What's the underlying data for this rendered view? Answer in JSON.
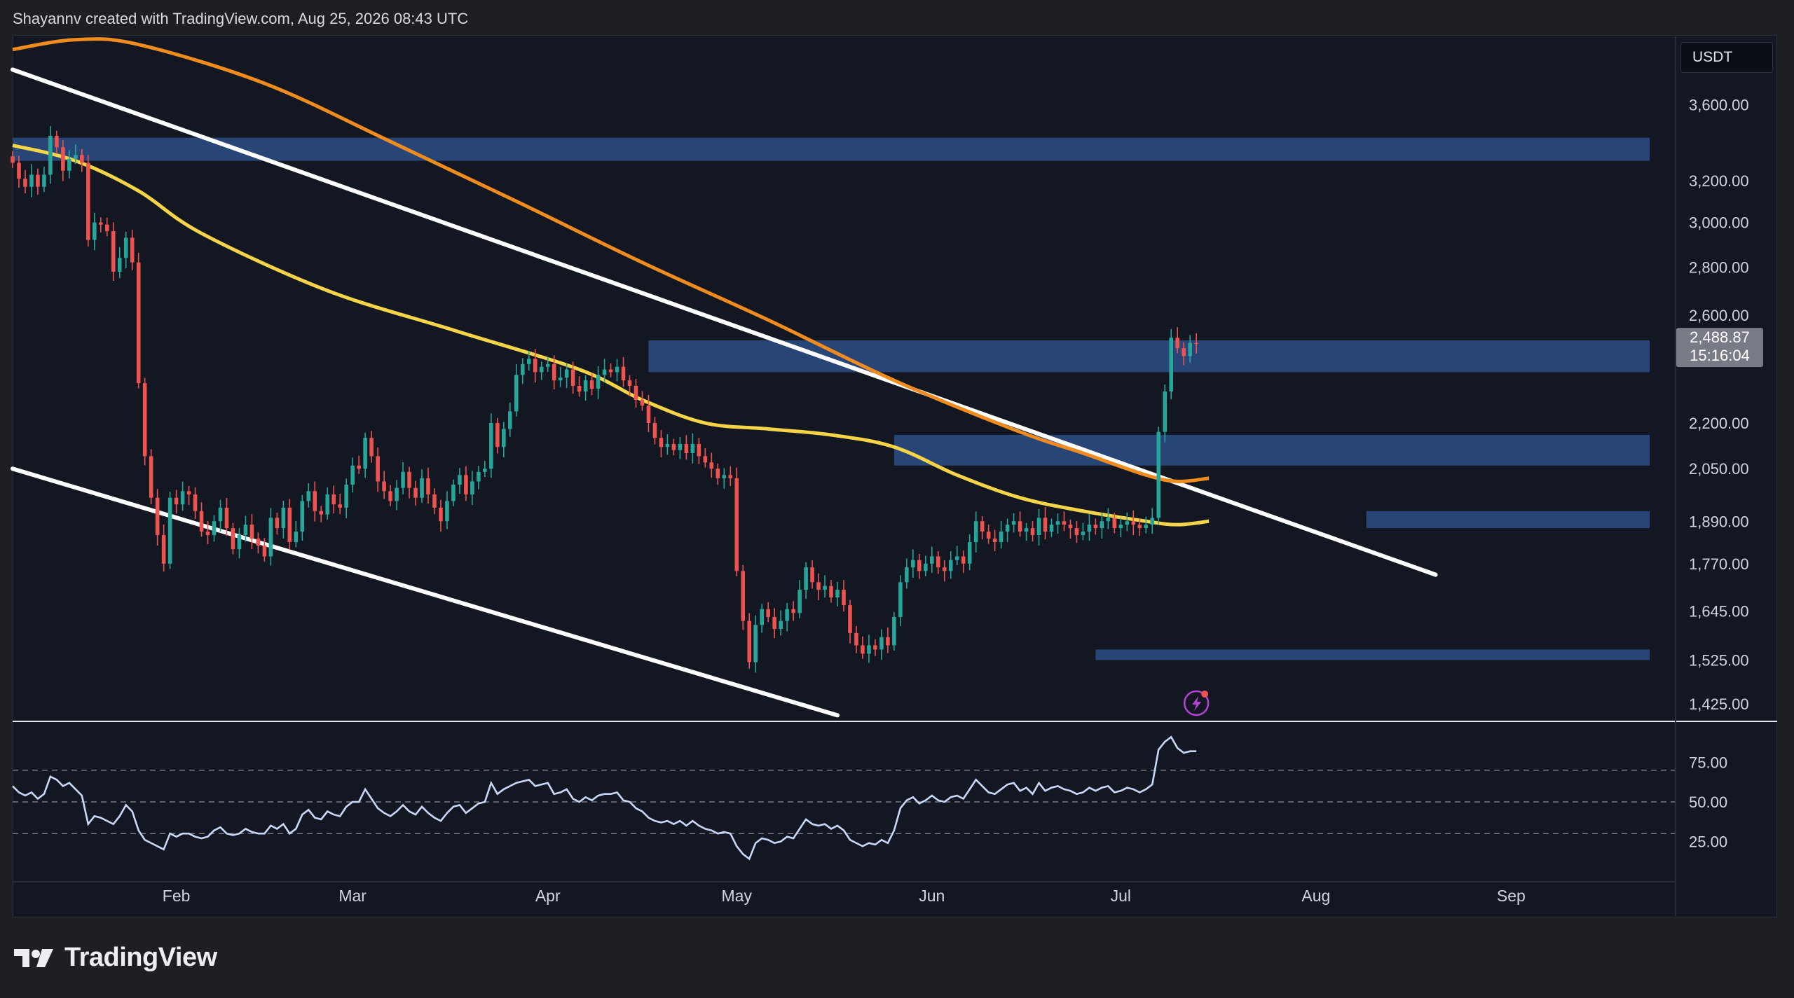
{
  "header": {
    "credit": "Shayannv created with TradingView.com, Aug 25, 2026 08:43 UTC"
  },
  "currency": "USDT",
  "brand": {
    "name": "TradingView",
    "icon": "tradingview-logo-icon"
  },
  "colors": {
    "background": "#131722",
    "up": "#26a69a",
    "down": "#ef5350",
    "ma_fast": "#f5d547",
    "ma_slow": "#f08c1e",
    "zones": "#2d4d87",
    "rsi": "#c8d8f8",
    "trendlines": "#ffffff",
    "price_label_bg": "#787b86"
  },
  "price_label": {
    "price": "2,488.87",
    "countdown": "15:16:04"
  },
  "chart_data": [
    {
      "type": "candlestick",
      "panel": "price",
      "quote": "USDT",
      "y_ticks": [
        3600,
        3200,
        3000,
        2800,
        2600,
        2200,
        2050,
        1890,
        1770,
        1645,
        1525,
        1425
      ],
      "y_tick_labels": [
        "3,600.00",
        "3,200.00",
        "3,000.00",
        "2,800.00",
        "2,600.00",
        "2,200.00",
        "2,050.00",
        "1,890.00",
        "1,770.00",
        "1,645.00",
        "1,525.00",
        "1,425.00"
      ],
      "ylim": [
        1390,
        4000
      ],
      "y_scale": "log",
      "x_tick_labels": [
        "Feb",
        "Mar",
        "Apr",
        "May",
        "Jun",
        "Jul",
        "Aug",
        "Sep"
      ],
      "x_tick_dates": [
        "2026-02-01",
        "2026-03-01",
        "2026-04-01",
        "2026-05-01",
        "2026-06-01",
        "2026-07-01",
        "2026-08-01",
        "2026-09-01"
      ],
      "xlim": [
        "2026-01-06",
        "2026-09-27"
      ],
      "candles_start": "2026-01-06",
      "closes": [
        3290,
        3210,
        3170,
        3230,
        3170,
        3230,
        3430,
        3370,
        3250,
        3310,
        3330,
        3290,
        2920,
        3000,
        2990,
        2960,
        2780,
        2840,
        2930,
        2820,
        2340,
        2090,
        1960,
        1850,
        1770,
        1960,
        1940,
        1980,
        1970,
        1920,
        1860,
        1850,
        1890,
        1930,
        1870,
        1810,
        1850,
        1880,
        1840,
        1820,
        1790,
        1900,
        1870,
        1930,
        1830,
        1860,
        1950,
        1980,
        1920,
        1910,
        1970,
        1940,
        1930,
        2000,
        2060,
        2050,
        2150,
        2090,
        2010,
        1980,
        1950,
        1990,
        2040,
        1990,
        1960,
        2020,
        1970,
        1930,
        1890,
        1950,
        2000,
        2030,
        1970,
        2010,
        2040,
        2050,
        2200,
        2120,
        2180,
        2240,
        2370,
        2410,
        2430,
        2380,
        2400,
        2410,
        2350,
        2360,
        2390,
        2330,
        2310,
        2350,
        2320,
        2370,
        2390,
        2380,
        2400,
        2350,
        2330,
        2280,
        2260,
        2200,
        2150,
        2120,
        2130,
        2110,
        2130,
        2100,
        2130,
        2090,
        2070,
        2050,
        2020,
        2030,
        2020,
        1750,
        1620,
        1520,
        1610,
        1650,
        1630,
        1600,
        1620,
        1650,
        1640,
        1700,
        1760,
        1720,
        1700,
        1710,
        1680,
        1700,
        1660,
        1590,
        1560,
        1540,
        1560,
        1550,
        1580,
        1560,
        1630,
        1720,
        1760,
        1780,
        1750,
        1770,
        1790,
        1760,
        1750,
        1780,
        1790,
        1770,
        1830,
        1890,
        1860,
        1840,
        1830,
        1860,
        1880,
        1890,
        1860,
        1870,
        1850,
        1900,
        1860,
        1880,
        1890,
        1880,
        1870,
        1850,
        1860,
        1880,
        1870,
        1890,
        1900,
        1870,
        1880,
        1890,
        1880,
        1870,
        1880,
        1900,
        2170,
        2310,
        2510,
        2470,
        2440,
        2490,
        2488.87
      ],
      "zones": [
        {
          "from": 3300,
          "to": 3420,
          "start": "2026-01-06",
          "end": "2026-09-23"
        },
        {
          "from": 2380,
          "to": 2500,
          "start": "2026-04-17",
          "end": "2026-09-23"
        },
        {
          "from": 2060,
          "to": 2160,
          "start": "2026-05-26",
          "end": "2026-09-23"
        },
        {
          "from": 1870,
          "to": 1920,
          "start": "2026-08-09",
          "end": "2026-09-23"
        },
        {
          "from": 1525,
          "to": 1550,
          "start": "2026-06-27",
          "end": "2026-09-23"
        }
      ],
      "trendlines": [
        {
          "start": "2026-01-06",
          "end": "2026-08-20",
          "from": 3800,
          "to": 1740
        },
        {
          "start": "2026-01-06",
          "end": "2026-05-17",
          "from": 2050,
          "to": 1400
        }
      ],
      "moving_averages": [
        {
          "role": "fast",
          "values": [
            [
              0,
              3380
            ],
            [
              10,
              3300
            ],
            [
              20,
              3150
            ],
            [
              30,
              2950
            ],
            [
              50,
              2700
            ],
            [
              70,
              2540
            ],
            [
              90,
              2390
            ],
            [
              100,
              2280
            ],
            [
              110,
              2200
            ],
            [
              120,
              2180
            ],
            [
              130,
              2160
            ],
            [
              140,
              2120
            ],
            [
              150,
              2030
            ],
            [
              160,
              1960
            ],
            [
              170,
              1920
            ],
            [
              180,
              1890
            ],
            [
              185,
              1880
            ],
            [
              190,
              1890
            ]
          ]
        },
        {
          "role": "slow",
          "values": [
            [
              0,
              3920
            ],
            [
              10,
              3980
            ],
            [
              20,
              3950
            ],
            [
              40,
              3720
            ],
            [
              60,
              3400
            ],
            [
              80,
              3100
            ],
            [
              100,
              2820
            ],
            [
              120,
              2580
            ],
            [
              140,
              2350
            ],
            [
              160,
              2170
            ],
            [
              170,
              2100
            ],
            [
              180,
              2030
            ],
            [
              185,
              2010
            ],
            [
              190,
              2020
            ]
          ]
        }
      ]
    },
    {
      "type": "line",
      "panel": "rsi",
      "y_ticks": [
        75,
        50,
        25
      ],
      "y_tick_labels": [
        "75.00",
        "50.00",
        "25.00"
      ],
      "ylim": [
        0,
        100
      ],
      "dashed_levels": [
        70,
        50,
        30
      ],
      "values": [
        60,
        56,
        54,
        56,
        52,
        55,
        66,
        64,
        60,
        62,
        58,
        54,
        36,
        41,
        40,
        38,
        36,
        41,
        48,
        44,
        32,
        26,
        24,
        22,
        20,
        30,
        28,
        30,
        30,
        28,
        27,
        28,
        32,
        34,
        30,
        29,
        30,
        33,
        31,
        30,
        30,
        35,
        33,
        36,
        30,
        33,
        42,
        45,
        40,
        39,
        44,
        42,
        41,
        47,
        50,
        50,
        58,
        52,
        46,
        43,
        41,
        44,
        48,
        44,
        42,
        47,
        43,
        40,
        38,
        43,
        47,
        48,
        43,
        46,
        49,
        50,
        62,
        55,
        58,
        60,
        62,
        63,
        64,
        60,
        61,
        62,
        55,
        56,
        58,
        52,
        50,
        53,
        51,
        54,
        55,
        55,
        56,
        51,
        50,
        46,
        44,
        40,
        38,
        37,
        38,
        36,
        38,
        35,
        38,
        35,
        33,
        32,
        30,
        31,
        30,
        22,
        17,
        14,
        24,
        27,
        26,
        24,
        25,
        28,
        27,
        33,
        39,
        36,
        35,
        36,
        33,
        35,
        32,
        26,
        24,
        22,
        24,
        23,
        26,
        24,
        32,
        46,
        51,
        53,
        49,
        51,
        54,
        51,
        50,
        53,
        54,
        52,
        58,
        64,
        60,
        56,
        55,
        58,
        61,
        62,
        57,
        59,
        55,
        62,
        57,
        59,
        60,
        58,
        57,
        55,
        56,
        59,
        57,
        59,
        60,
        56,
        57,
        59,
        58,
        56,
        58,
        61,
        83,
        88,
        91,
        84,
        81,
        82,
        82
      ]
    }
  ]
}
